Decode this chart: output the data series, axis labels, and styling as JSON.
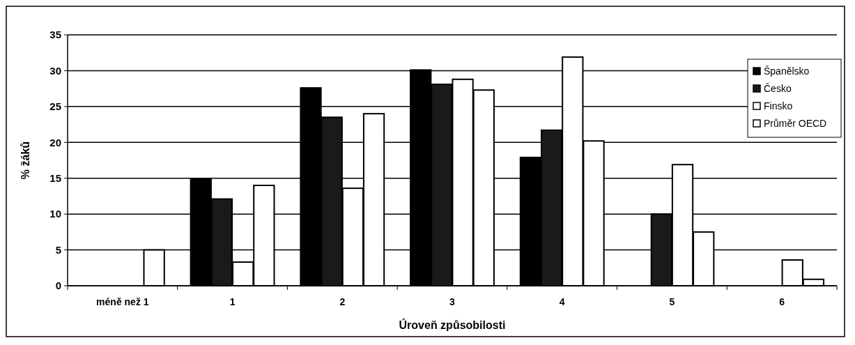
{
  "chart_data": {
    "type": "bar",
    "xlabel": "Úroveň způsobilosti",
    "ylabel": "% žáků",
    "categories": [
      "méně než 1",
      "1",
      "2",
      "3",
      "4",
      "5",
      "6"
    ],
    "series": [
      {
        "name": "Španělsko",
        "color": "#000000",
        "values": [
          null,
          14.9,
          27.6,
          30.1,
          17.9,
          null,
          null
        ]
      },
      {
        "name": "Česko",
        "color": "#1a1a1a",
        "values": [
          null,
          12.1,
          23.5,
          28.1,
          21.7,
          10,
          null
        ]
      },
      {
        "name": "Finsko",
        "color": "#ffffff",
        "values": [
          null,
          3.3,
          13.6,
          28.8,
          31.9,
          16.9,
          3.6
        ]
      },
      {
        "name": "Průměr OECD",
        "color": "#ffffff",
        "values": [
          5,
          14,
          24,
          27.3,
          20.2,
          7.5,
          0.9
        ]
      }
    ],
    "ylim": [
      0,
      35
    ],
    "yticks": [
      0,
      5,
      10,
      15,
      20,
      25,
      30,
      35
    ],
    "grid": "y",
    "legend": "top right"
  }
}
